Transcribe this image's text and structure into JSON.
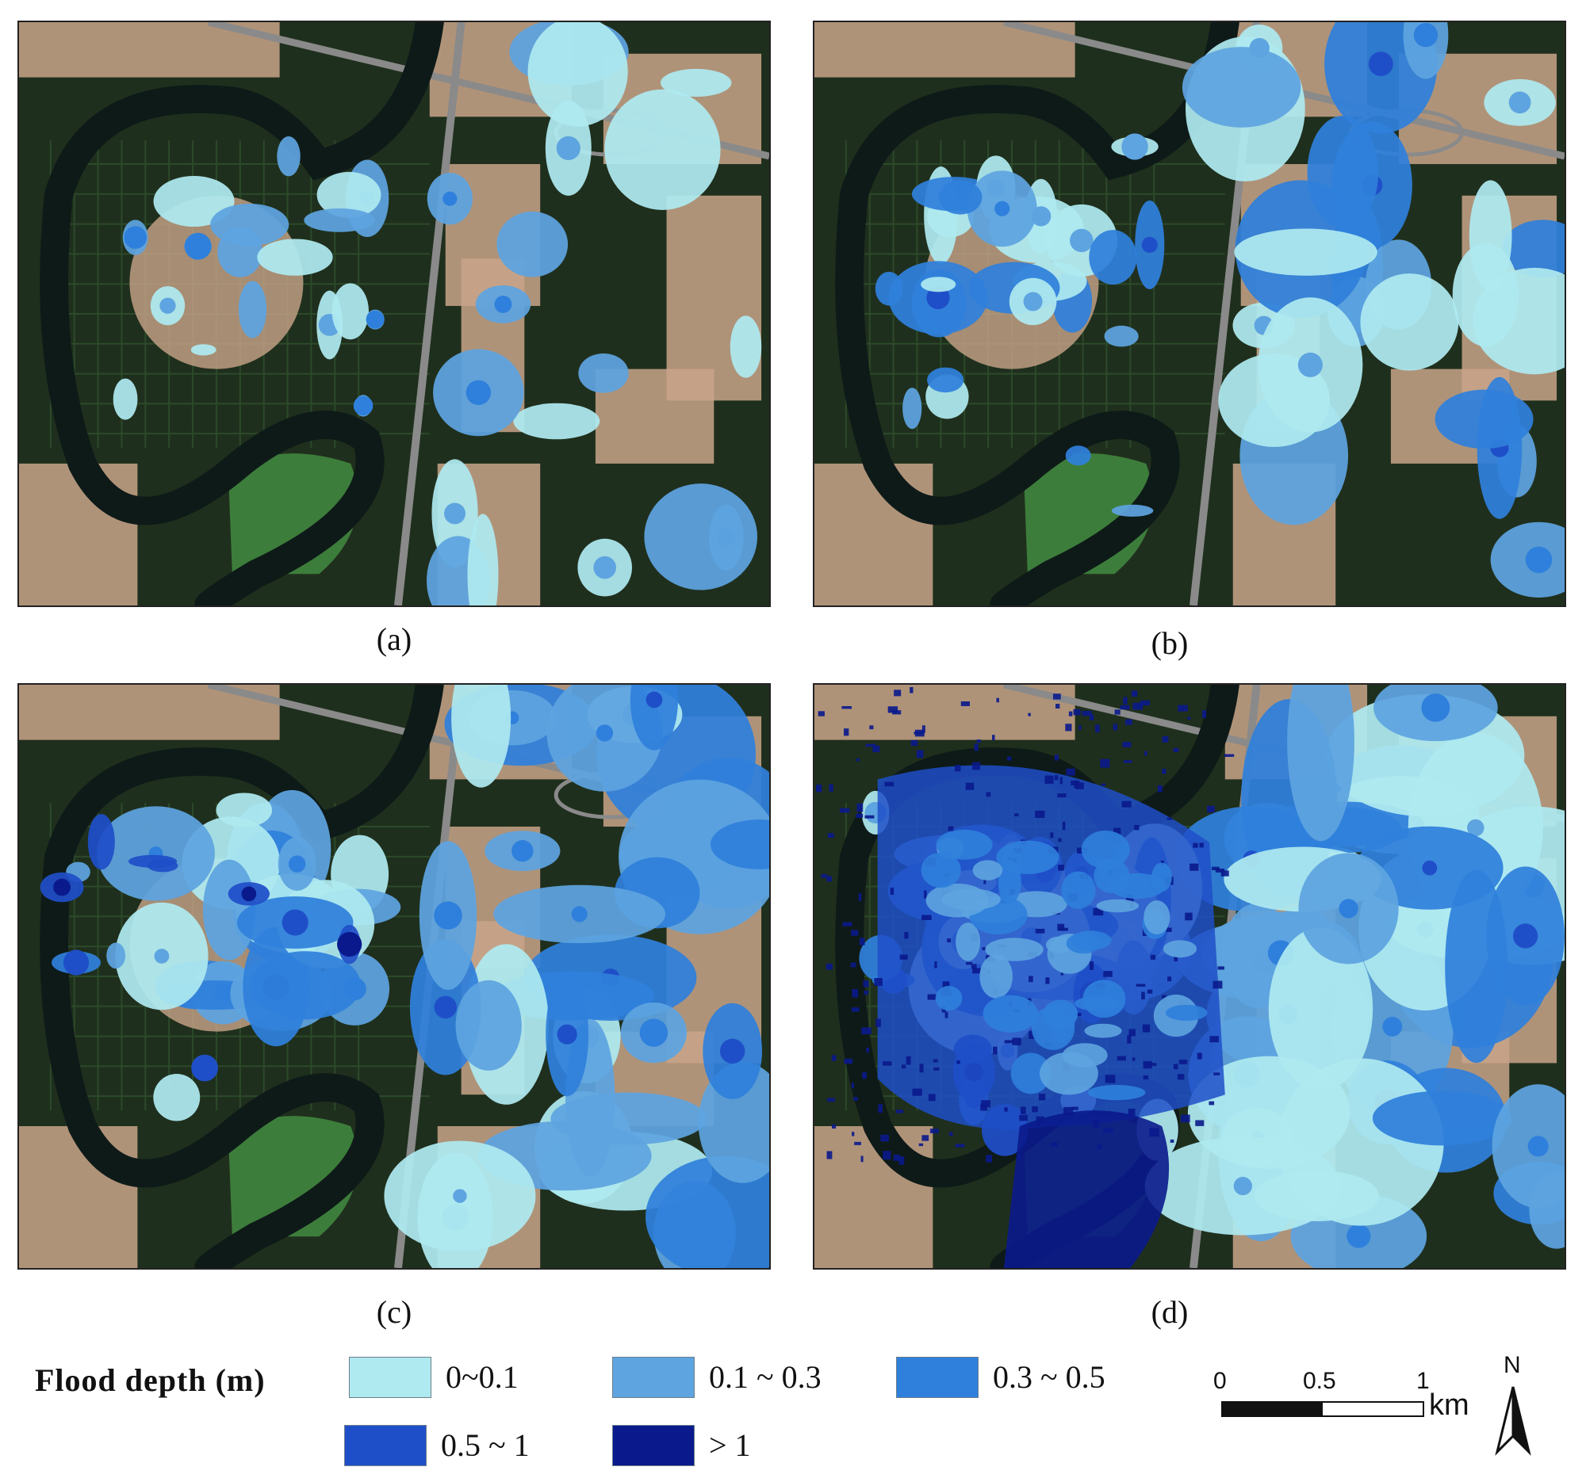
{
  "panels": [
    {
      "id": "a",
      "caption": "(a)",
      "level": 1
    },
    {
      "id": "b",
      "caption": "(b)",
      "level": 2
    },
    {
      "id": "c",
      "caption": "(c)",
      "level": 3
    },
    {
      "id": "d",
      "caption": "(d)",
      "level": 4
    }
  ],
  "legend": {
    "title": "Flood depth (m)",
    "classes": [
      {
        "label": "0~0.1",
        "color": "#aeeaf0"
      },
      {
        "label": "0.1 ~ 0.3",
        "color": "#5ea4e0"
      },
      {
        "label": "0.3 ~ 0.5",
        "color": "#2f80dc"
      },
      {
        "label": "0.5 ~ 1",
        "color": "#1f4fc8"
      },
      {
        "label": "> 1",
        "color": "#0a1a8c"
      }
    ]
  },
  "scale_bar": {
    "ticks": [
      "0",
      "0.5",
      "1"
    ],
    "unit": "km"
  },
  "north_arrow": {
    "label": "N"
  },
  "basemap_colors": {
    "field": "#1f2f1d",
    "field_light": "#2c4a2a",
    "river": "#0e1a18",
    "urban": "#c9a58a",
    "road": "#8a8a8a",
    "park": "#3d7d3b"
  }
}
